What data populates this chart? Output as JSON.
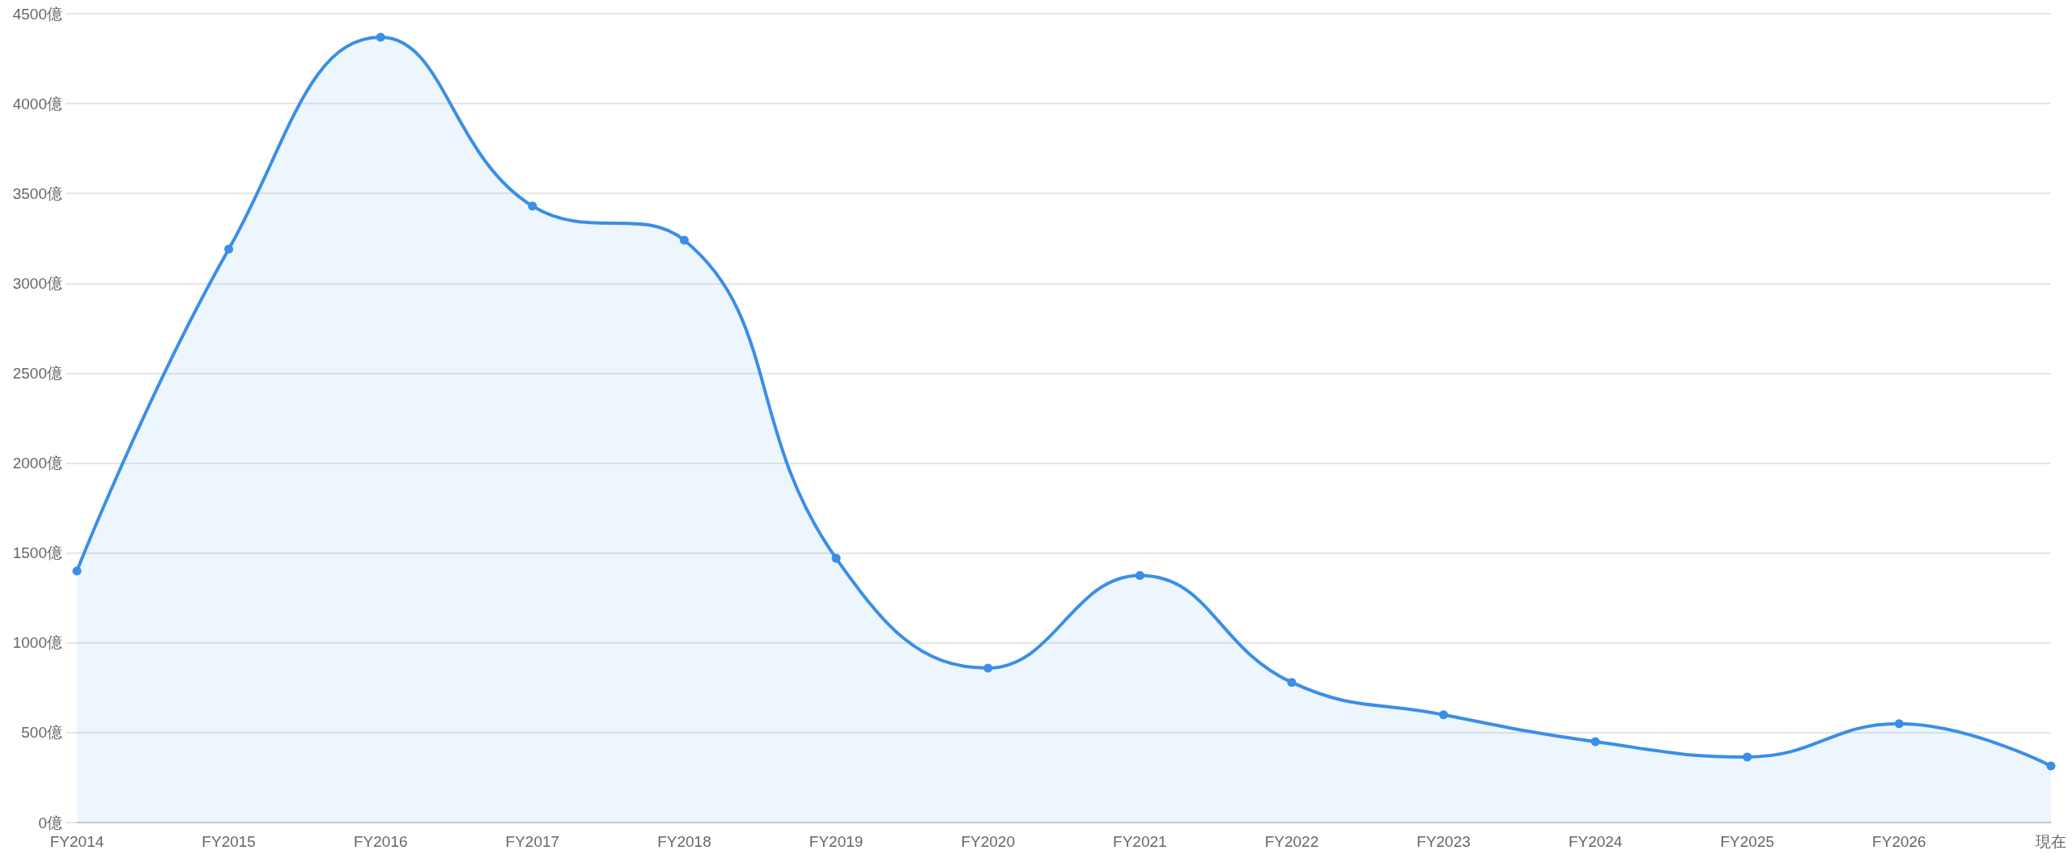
{
  "chart_data": {
    "type": "area",
    "categories": [
      "FY2014",
      "FY2015",
      "FY2016",
      "FY2017",
      "FY2018",
      "FY2019",
      "FY2020",
      "FY2021",
      "FY2022",
      "FY2023",
      "FY2024",
      "FY2025",
      "FY2026",
      "現在"
    ],
    "values": [
      1400,
      3190,
      4370,
      3430,
      3240,
      1470,
      860,
      1375,
      780,
      600,
      450,
      365,
      550,
      315
    ],
    "color": "#3a8ee6",
    "ylim": [
      0,
      4500
    ],
    "yticks": [
      {
        "value": 0,
        "label": "0億"
      },
      {
        "value": 500,
        "label": "500億"
      },
      {
        "value": 1000,
        "label": "1000億"
      },
      {
        "value": 1500,
        "label": "1500億"
      },
      {
        "value": 2000,
        "label": "2000億"
      },
      {
        "value": 2500,
        "label": "2500億"
      },
      {
        "value": 3000,
        "label": "3000億"
      },
      {
        "value": 3500,
        "label": "3500億"
      },
      {
        "value": 4000,
        "label": "4000億"
      },
      {
        "value": 4500,
        "label": "4500億"
      }
    ],
    "grid": "y",
    "marker": "circle"
  }
}
